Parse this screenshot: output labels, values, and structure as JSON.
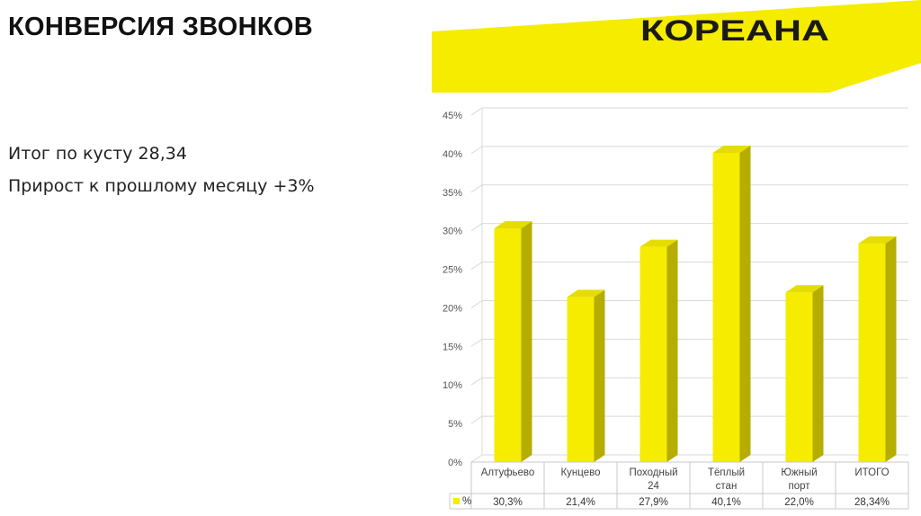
{
  "slide": {
    "title": "КОНВЕРСИЯ ЗВОНКОВ",
    "logo_text": "КОРЕАНА",
    "line1": "Итог по кусту 28,34",
    "line2": "Прирост к прошлому месяцу +3%"
  },
  "colors": {
    "accent": "#f5ec00",
    "bar_side": "#b5ad00",
    "bar_top": "#e6dc00",
    "logo": "#1a1a1a"
  },
  "chart_data": {
    "type": "bar",
    "categories": [
      [
        "Алтуфьево"
      ],
      [
        "Кунцево"
      ],
      [
        "Походный",
        "24"
      ],
      [
        "Тёплый",
        "стан"
      ],
      [
        "Южный",
        "порт"
      ],
      [
        "ИТОГО"
      ]
    ],
    "series": [
      {
        "name": "%",
        "values": [
          30.3,
          21.4,
          27.9,
          40.1,
          22.0,
          28.34
        ]
      }
    ],
    "value_labels": [
      "30,3%",
      "21,4%",
      "27,9%",
      "40,1%",
      "22,0%",
      "28,34%"
    ],
    "y_ticks": [
      "0%",
      "5%",
      "10%",
      "15%",
      "20%",
      "25%",
      "30%",
      "35%",
      "40%",
      "45%"
    ],
    "ylim": [
      0,
      45
    ],
    "grid": true,
    "legend": "data-table-left",
    "data_table": true
  }
}
